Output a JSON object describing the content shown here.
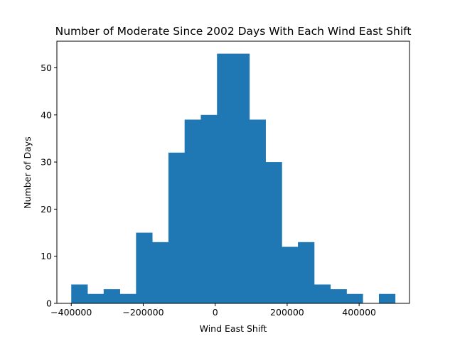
{
  "chart_data": {
    "type": "bar",
    "title": "Number of Moderate Since 2002 Days With Each Wind East Shift",
    "xlabel": "Wind East Shift",
    "ylabel": "Number of Days",
    "bins": [
      {
        "x0": -400000,
        "x1": -355000,
        "count": 4
      },
      {
        "x0": -355000,
        "x1": -310000,
        "count": 2
      },
      {
        "x0": -310000,
        "x1": -265000,
        "count": 3
      },
      {
        "x0": -265000,
        "x1": -220000,
        "count": 2
      },
      {
        "x0": -220000,
        "x1": -175000,
        "count": 15
      },
      {
        "x0": -175000,
        "x1": -130000,
        "count": 13
      },
      {
        "x0": -130000,
        "x1": -85000,
        "count": 32
      },
      {
        "x0": -85000,
        "x1": -40000,
        "count": 39
      },
      {
        "x0": -40000,
        "x1": 5000,
        "count": 40
      },
      {
        "x0": 5000,
        "x1": 50000,
        "count": 53
      },
      {
        "x0": 50000,
        "x1": 95000,
        "count": 53
      },
      {
        "x0": 95000,
        "x1": 140000,
        "count": 39
      },
      {
        "x0": 140000,
        "x1": 185000,
        "count": 30
      },
      {
        "x0": 185000,
        "x1": 230000,
        "count": 12
      },
      {
        "x0": 230000,
        "x1": 275000,
        "count": 13
      },
      {
        "x0": 275000,
        "x1": 320000,
        "count": 4
      },
      {
        "x0": 320000,
        "x1": 365000,
        "count": 3
      },
      {
        "x0": 365000,
        "x1": 410000,
        "count": 2
      },
      {
        "x0": 410000,
        "x1": 455000,
        "count": 0
      },
      {
        "x0": 455000,
        "x1": 500000,
        "count": 2
      }
    ],
    "xlim": [
      -440000,
      540000
    ],
    "ylim": [
      0,
      55.65
    ],
    "xticks": [
      -400000,
      -200000,
      0,
      200000,
      400000
    ],
    "xtick_labels": [
      "−400000",
      "−200000",
      "0",
      "200000",
      "400000"
    ],
    "yticks": [
      0,
      10,
      20,
      30,
      40,
      50
    ],
    "ytick_labels": [
      "0",
      "10",
      "20",
      "30",
      "40",
      "50"
    ],
    "bar_color": "#1f77b4",
    "grid": false,
    "legend": "none"
  }
}
